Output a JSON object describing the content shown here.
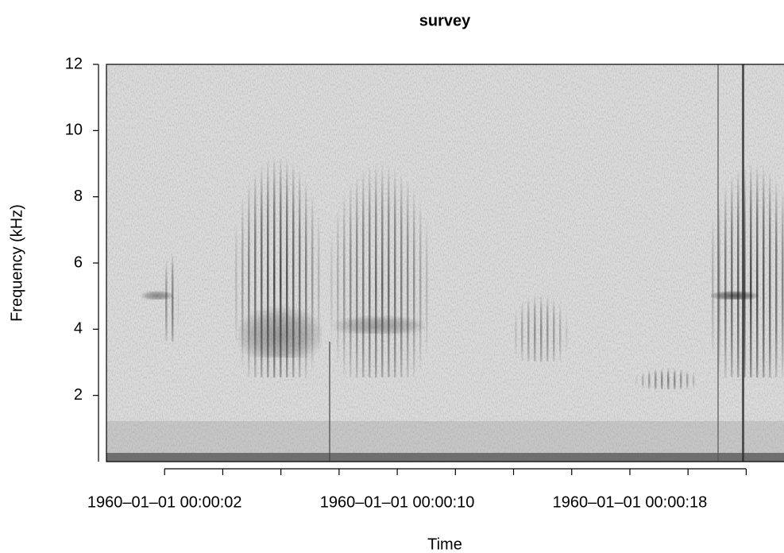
{
  "chart_data": {
    "type": "spectrogram",
    "title": "survey",
    "x_label": "Time",
    "y_label": "Frequency (kHz)",
    "xlim": [
      0,
      23.3
    ],
    "ylim": [
      0,
      12
    ],
    "xticks": [
      {
        "value": 2,
        "label": "1960–01–01 00:00:02"
      },
      {
        "value": 4,
        "label": null
      },
      {
        "value": 6,
        "label": null
      },
      {
        "value": 8,
        "label": null
      },
      {
        "value": 10,
        "label": "1960–01–01 00:00:10"
      },
      {
        "value": 12,
        "label": null
      },
      {
        "value": 14,
        "label": null
      },
      {
        "value": 16,
        "label": null
      },
      {
        "value": 18,
        "label": "1960–01–01 00:00:18"
      },
      {
        "value": 20,
        "label": null
      },
      {
        "value": 22,
        "label": null
      }
    ],
    "yticks": [
      2,
      4,
      6,
      8,
      10,
      12
    ]
  }
}
